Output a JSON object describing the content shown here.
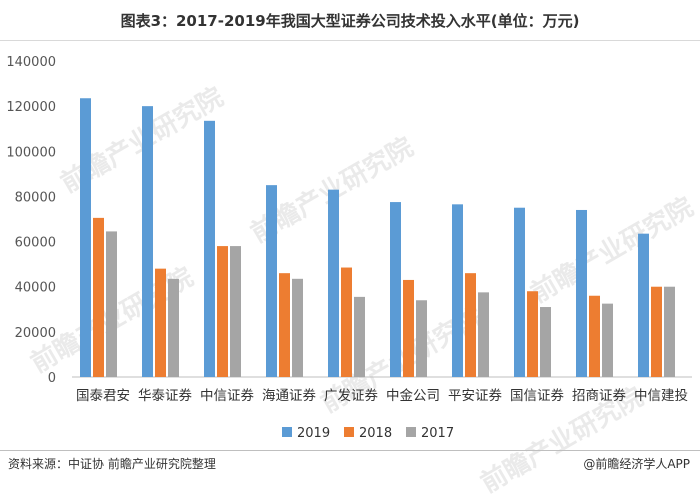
{
  "title": "图表3：2017-2019年我国大型证券公司技术投入水平(单位：万元)",
  "footer": {
    "source": "资料来源：中证协 前瞻产业研究院整理",
    "brand": "@前瞻经济学人APP"
  },
  "watermark": "前瞻产业研究院",
  "chart_data": {
    "type": "bar",
    "categories": [
      "国泰君安",
      "华泰证券",
      "中信证券",
      "海通证券",
      "广发证券",
      "中金公司",
      "平安证券",
      "国信证券",
      "招商证券",
      "中信建投"
    ],
    "series": [
      {
        "name": "2019",
        "color": "#5b9bd5",
        "values": [
          123500,
          120000,
          113500,
          85000,
          83000,
          77500,
          76500,
          75000,
          74000,
          63500
        ]
      },
      {
        "name": "2018",
        "color": "#ed7d31",
        "values": [
          70500,
          48000,
          58000,
          46000,
          48500,
          43000,
          46000,
          38000,
          36000,
          40000
        ]
      },
      {
        "name": "2017",
        "color": "#a5a5a5",
        "values": [
          64500,
          43500,
          58000,
          43500,
          35500,
          34000,
          37500,
          31000,
          32500,
          40000
        ]
      }
    ],
    "yticks": [
      0,
      20000,
      40000,
      60000,
      80000,
      100000,
      120000,
      140000
    ],
    "ylim": [
      0,
      140000
    ],
    "grid": false,
    "legend": "bottom"
  }
}
